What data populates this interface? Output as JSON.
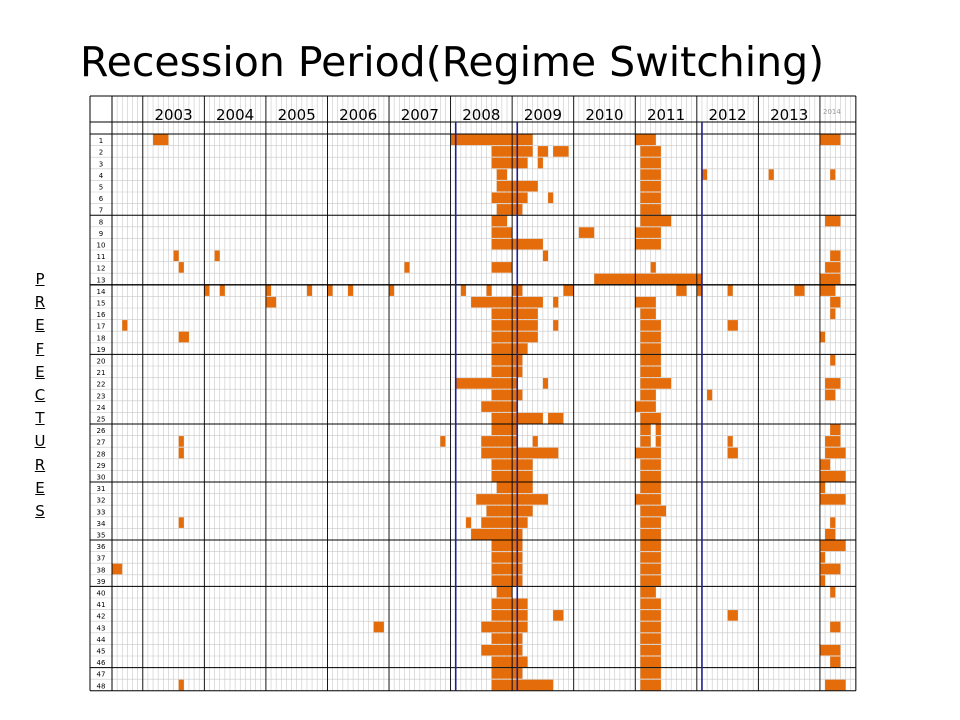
{
  "slide": {
    "title": "Recession Period(Regime Switching)",
    "side_label_letters": [
      "P",
      "R",
      "E",
      "F",
      "E",
      "C",
      "T",
      "U",
      "R",
      "E",
      "S"
    ]
  },
  "colors": {
    "recession": "#E46C0A",
    "grid_minor": "#C9C9C9",
    "grid_major": "#000000",
    "marker_line": "#1F1F8F"
  },
  "chart_data": {
    "type": "heatmap",
    "title": "Recession Period(Regime Switching)",
    "ylabel": "PREFECTURES",
    "x_unit": "month",
    "x_start": "2002-07",
    "x_end": "2014-07",
    "grid": true,
    "year_labels": [
      {
        "label": "2003",
        "year": 2003
      },
      {
        "label": "2004",
        "year": 2004
      },
      {
        "label": "2005",
        "year": 2005
      },
      {
        "label": "2006",
        "year": 2006
      },
      {
        "label": "2007",
        "year": 2007
      },
      {
        "label": "2008",
        "year": 2008
      },
      {
        "label": "2009",
        "year": 2009
      },
      {
        "label": "2010",
        "year": 2010
      },
      {
        "label": "2011",
        "year": 2011
      },
      {
        "label": "2012",
        "year": 2012
      },
      {
        "label": "2013",
        "year": 2013
      },
      {
        "label": "2014",
        "year": 2014
      }
    ],
    "prefectures": [
      "1",
      "2",
      "3",
      "4",
      "5",
      "6",
      "7",
      "8",
      "9",
      "10",
      "11",
      "12",
      "13",
      "14",
      "15",
      "16",
      "17",
      "18",
      "19",
      "20",
      "21",
      "22",
      "23",
      "24",
      "25",
      "26",
      "27",
      "28",
      "29",
      "30",
      "31",
      "32",
      "33",
      "34",
      "35",
      "36",
      "37",
      "38",
      "39",
      "40",
      "41",
      "42",
      "43",
      "44",
      "45",
      "46",
      "47",
      "48"
    ],
    "vertical_markers": [
      "2008-02",
      "2009-02",
      "2012-02"
    ],
    "recession_periods": {
      "1": [
        [
          "2003-03",
          "2003-05"
        ],
        [
          "2008-01",
          "2009-04"
        ],
        [
          "2011-01",
          "2011-04"
        ],
        [
          "2014-01",
          "2014-04"
        ]
      ],
      "2": [
        [
          "2008-09",
          "2009-04"
        ],
        [
          "2009-06",
          "2009-07"
        ],
        [
          "2009-09",
          "2009-11"
        ],
        [
          "2011-02",
          "2011-05"
        ]
      ],
      "3": [
        [
          "2008-09",
          "2009-03"
        ],
        [
          "2009-06",
          "2009-06"
        ],
        [
          "2011-02",
          "2011-05"
        ]
      ],
      "4": [
        [
          "2008-10",
          "2008-11"
        ],
        [
          "2011-02",
          "2011-05"
        ],
        [
          "2012-02",
          "2012-02"
        ],
        [
          "2013-03",
          "2013-03"
        ],
        [
          "2014-03",
          "2014-03"
        ]
      ],
      "5": [
        [
          "2008-10",
          "2009-05"
        ],
        [
          "2011-02",
          "2011-05"
        ]
      ],
      "6": [
        [
          "2008-09",
          "2009-03"
        ],
        [
          "2009-08",
          "2009-08"
        ],
        [
          "2011-02",
          "2011-05"
        ]
      ],
      "7": [
        [
          "2008-10",
          "2009-02"
        ],
        [
          "2011-02",
          "2011-05"
        ]
      ],
      "8": [
        [
          "2008-09",
          "2008-11"
        ],
        [
          "2011-02",
          "2011-07"
        ],
        [
          "2014-02",
          "2014-04"
        ]
      ],
      "9": [
        [
          "2008-09",
          "2008-12"
        ],
        [
          "2010-02",
          "2010-04"
        ],
        [
          "2011-01",
          "2011-05"
        ]
      ],
      "10": [
        [
          "2008-09",
          "2009-06"
        ],
        [
          "2011-01",
          "2011-05"
        ]
      ],
      "11": [
        [
          "2003-07",
          "2003-07"
        ],
        [
          "2004-03",
          "2004-03"
        ],
        [
          "2009-07",
          "2009-07"
        ],
        [
          "2014-03",
          "2014-04"
        ]
      ],
      "12": [
        [
          "2003-08",
          "2003-08"
        ],
        [
          "2007-04",
          "2007-04"
        ],
        [
          "2008-09",
          "2008-12"
        ],
        [
          "2011-04",
          "2011-04"
        ],
        [
          "2014-02",
          "2014-04"
        ]
      ],
      "13": [
        [
          "2010-05",
          "2012-01"
        ],
        [
          "2014-01",
          "2014-04"
        ]
      ],
      "14": [
        [
          "2004-01",
          "2004-01"
        ],
        [
          "2004-04",
          "2004-04"
        ],
        [
          "2005-01",
          "2005-01"
        ],
        [
          "2005-09",
          "2005-09"
        ],
        [
          "2006-01",
          "2006-01"
        ],
        [
          "2006-05",
          "2006-05"
        ],
        [
          "2007-01",
          "2007-01"
        ],
        [
          "2008-03",
          "2008-03"
        ],
        [
          "2008-08",
          "2008-08"
        ],
        [
          "2009-01",
          "2009-02"
        ],
        [
          "2009-11",
          "2009-12"
        ],
        [
          "2011-09",
          "2011-10"
        ],
        [
          "2012-01",
          "2012-01"
        ],
        [
          "2012-07",
          "2012-07"
        ],
        [
          "2013-08",
          "2013-09"
        ],
        [
          "2014-01",
          "2014-03"
        ]
      ],
      "15": [
        [
          "2005-01",
          "2005-02"
        ],
        [
          "2008-05",
          "2009-06"
        ],
        [
          "2009-09",
          "2009-09"
        ],
        [
          "2011-01",
          "2011-04"
        ],
        [
          "2014-03",
          "2014-04"
        ]
      ],
      "16": [
        [
          "2008-09",
          "2009-05"
        ],
        [
          "2011-02",
          "2011-04"
        ],
        [
          "2014-03",
          "2014-03"
        ]
      ],
      "17": [
        [
          "2002-09",
          "2002-09"
        ],
        [
          "2008-09",
          "2009-05"
        ],
        [
          "2009-09",
          "2009-09"
        ],
        [
          "2011-02",
          "2011-05"
        ],
        [
          "2012-07",
          "2012-08"
        ]
      ],
      "18": [
        [
          "2003-08",
          "2003-09"
        ],
        [
          "2008-09",
          "2009-05"
        ],
        [
          "2011-02",
          "2011-05"
        ],
        [
          "2014-01",
          "2014-01"
        ]
      ],
      "19": [
        [
          "2008-09",
          "2009-03"
        ],
        [
          "2011-02",
          "2011-05"
        ]
      ],
      "20": [
        [
          "2008-09",
          "2009-02"
        ],
        [
          "2011-02",
          "2011-05"
        ],
        [
          "2014-03",
          "2014-03"
        ]
      ],
      "21": [
        [
          "2008-09",
          "2009-02"
        ],
        [
          "2011-02",
          "2011-05"
        ]
      ],
      "22": [
        [
          "2008-02",
          "2009-01"
        ],
        [
          "2009-07",
          "2009-07"
        ],
        [
          "2011-02",
          "2011-07"
        ],
        [
          "2014-02",
          "2014-04"
        ]
      ],
      "23": [
        [
          "2008-09",
          "2009-02"
        ],
        [
          "2011-02",
          "2011-04"
        ],
        [
          "2012-03",
          "2012-03"
        ],
        [
          "2014-02",
          "2014-03"
        ]
      ],
      "24": [
        [
          "2008-07",
          "2009-01"
        ],
        [
          "2011-01",
          "2011-04"
        ]
      ],
      "25": [
        [
          "2008-09",
          "2009-06"
        ],
        [
          "2009-08",
          "2009-10"
        ],
        [
          "2011-02",
          "2011-05"
        ]
      ],
      "26": [
        [
          "2008-09",
          "2009-01"
        ],
        [
          "2011-02",
          "2011-03"
        ],
        [
          "2011-05",
          "2011-05"
        ],
        [
          "2014-03",
          "2014-04"
        ]
      ],
      "27": [
        [
          "2003-08",
          "2003-08"
        ],
        [
          "2007-11",
          "2007-11"
        ],
        [
          "2008-07",
          "2009-01"
        ],
        [
          "2009-05",
          "2009-05"
        ],
        [
          "2011-02",
          "2011-03"
        ],
        [
          "2011-05",
          "2011-05"
        ],
        [
          "2012-07",
          "2012-07"
        ],
        [
          "2014-02",
          "2014-04"
        ]
      ],
      "28": [
        [
          "2003-08",
          "2003-08"
        ],
        [
          "2008-07",
          "2009-09"
        ],
        [
          "2011-01",
          "2011-05"
        ],
        [
          "2012-07",
          "2012-08"
        ],
        [
          "2014-02",
          "2014-05"
        ]
      ],
      "29": [
        [
          "2008-09",
          "2009-04"
        ],
        [
          "2011-02",
          "2011-05"
        ],
        [
          "2014-01",
          "2014-02"
        ]
      ],
      "30": [
        [
          "2008-09",
          "2009-04"
        ],
        [
          "2011-02",
          "2011-05"
        ],
        [
          "2014-01",
          "2014-05"
        ]
      ],
      "31": [
        [
          "2008-10",
          "2009-04"
        ],
        [
          "2011-02",
          "2011-05"
        ],
        [
          "2014-01",
          "2014-01"
        ]
      ],
      "32": [
        [
          "2008-06",
          "2009-07"
        ],
        [
          "2011-01",
          "2011-05"
        ],
        [
          "2014-01",
          "2014-05"
        ]
      ],
      "33": [
        [
          "2008-08",
          "2009-04"
        ],
        [
          "2011-02",
          "2011-06"
        ]
      ],
      "34": [
        [
          "2003-08",
          "2003-08"
        ],
        [
          "2008-04",
          "2008-04"
        ],
        [
          "2008-07",
          "2009-03"
        ],
        [
          "2011-02",
          "2011-05"
        ],
        [
          "2014-03",
          "2014-03"
        ]
      ],
      "35": [
        [
          "2008-05",
          "2009-02"
        ],
        [
          "2011-02",
          "2011-05"
        ],
        [
          "2014-02",
          "2014-03"
        ]
      ],
      "36": [
        [
          "2008-09",
          "2009-02"
        ],
        [
          "2011-02",
          "2011-05"
        ],
        [
          "2014-01",
          "2014-05"
        ]
      ],
      "37": [
        [
          "2008-09",
          "2009-02"
        ],
        [
          "2011-02",
          "2011-05"
        ],
        [
          "2014-01",
          "2014-01"
        ]
      ],
      "38": [
        [
          "2002-07",
          "2002-08"
        ],
        [
          "2008-09",
          "2009-02"
        ],
        [
          "2011-02",
          "2011-05"
        ],
        [
          "2014-01",
          "2014-04"
        ]
      ],
      "39": [
        [
          "2008-09",
          "2009-02"
        ],
        [
          "2011-02",
          "2011-05"
        ],
        [
          "2014-01",
          "2014-01"
        ]
      ],
      "40": [
        [
          "2008-10",
          "2008-12"
        ],
        [
          "2011-02",
          "2011-04"
        ],
        [
          "2014-03",
          "2014-03"
        ]
      ],
      "41": [
        [
          "2008-09",
          "2009-03"
        ],
        [
          "2011-02",
          "2011-05"
        ]
      ],
      "42": [
        [
          "2008-09",
          "2009-03"
        ],
        [
          "2009-09",
          "2009-10"
        ],
        [
          "2011-02",
          "2011-05"
        ],
        [
          "2012-07",
          "2012-08"
        ]
      ],
      "43": [
        [
          "2006-10",
          "2006-11"
        ],
        [
          "2008-07",
          "2009-03"
        ],
        [
          "2011-02",
          "2011-05"
        ],
        [
          "2014-03",
          "2014-04"
        ]
      ],
      "44": [
        [
          "2008-09",
          "2009-02"
        ],
        [
          "2011-02",
          "2011-05"
        ]
      ],
      "45": [
        [
          "2008-07",
          "2009-02"
        ],
        [
          "2011-02",
          "2011-05"
        ],
        [
          "2014-01",
          "2014-04"
        ]
      ],
      "46": [
        [
          "2008-09",
          "2009-03"
        ],
        [
          "2011-02",
          "2011-05"
        ],
        [
          "2014-03",
          "2014-04"
        ]
      ],
      "47": [
        [
          "2008-09",
          "2009-02"
        ],
        [
          "2011-02",
          "2011-05"
        ]
      ],
      "48": [
        [
          "2003-08",
          "2003-08"
        ],
        [
          "2008-09",
          "2009-08"
        ],
        [
          "2011-02",
          "2011-05"
        ],
        [
          "2014-02",
          "2014-05"
        ]
      ]
    }
  }
}
